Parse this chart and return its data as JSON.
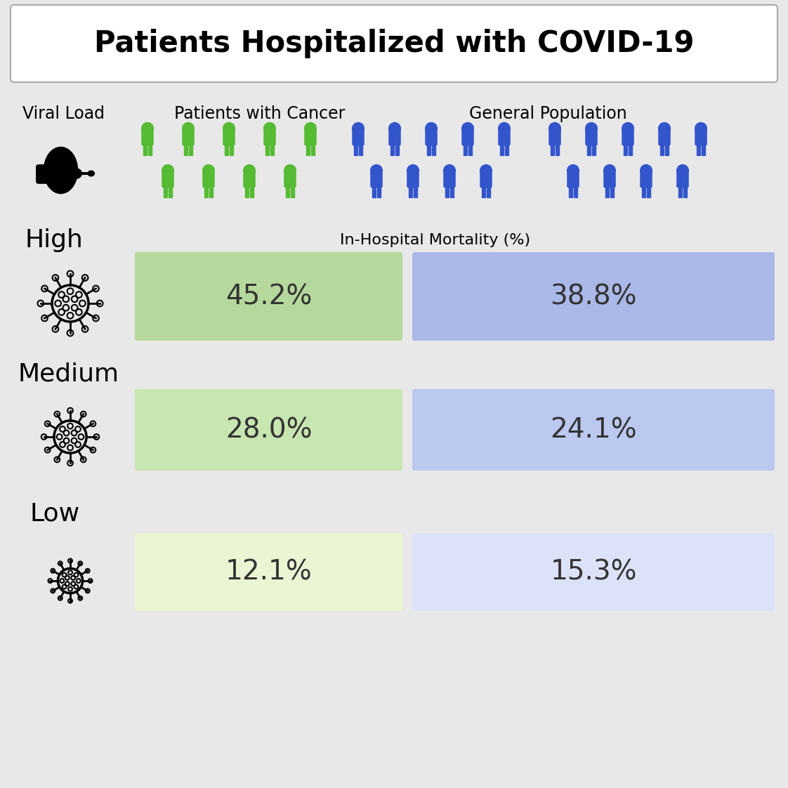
{
  "title": "Patients Hospitalized with COVID-19",
  "title_fontsize": 30,
  "title_fontweight": "bold",
  "background_color": "#e8e8e8",
  "col1_header": "Viral Load",
  "col2_header": "Patients with Cancer",
  "col3_header": "General Population",
  "header_fontsize": 17,
  "viral_load_labels": [
    "High",
    "Medium",
    "Low"
  ],
  "viral_load_label_fontsize": 26,
  "mortality_header": "In-Hospital Mortality (%)",
  "mortality_header_fontsize": 16,
  "cancer_values": [
    "45.2%",
    "28.0%",
    "12.1%"
  ],
  "general_values": [
    "38.8%",
    "24.1%",
    "15.3%"
  ],
  "value_fontsize": 28,
  "green_colors_high": "#b5d99c",
  "green_colors_medium": "#c8e6b0",
  "green_colors_low": "#eaf5d3",
  "blue_colors_high": "#aab8e8",
  "blue_colors_medium": "#bbc8f0",
  "blue_colors_low": "#dce3f8",
  "green_icon_color": "#55bb33",
  "blue_icon_color": "#3355cc",
  "n_cancer_row1": 5,
  "n_cancer_row2": 4,
  "n_general_row1": 5,
  "n_general_row2": 4
}
